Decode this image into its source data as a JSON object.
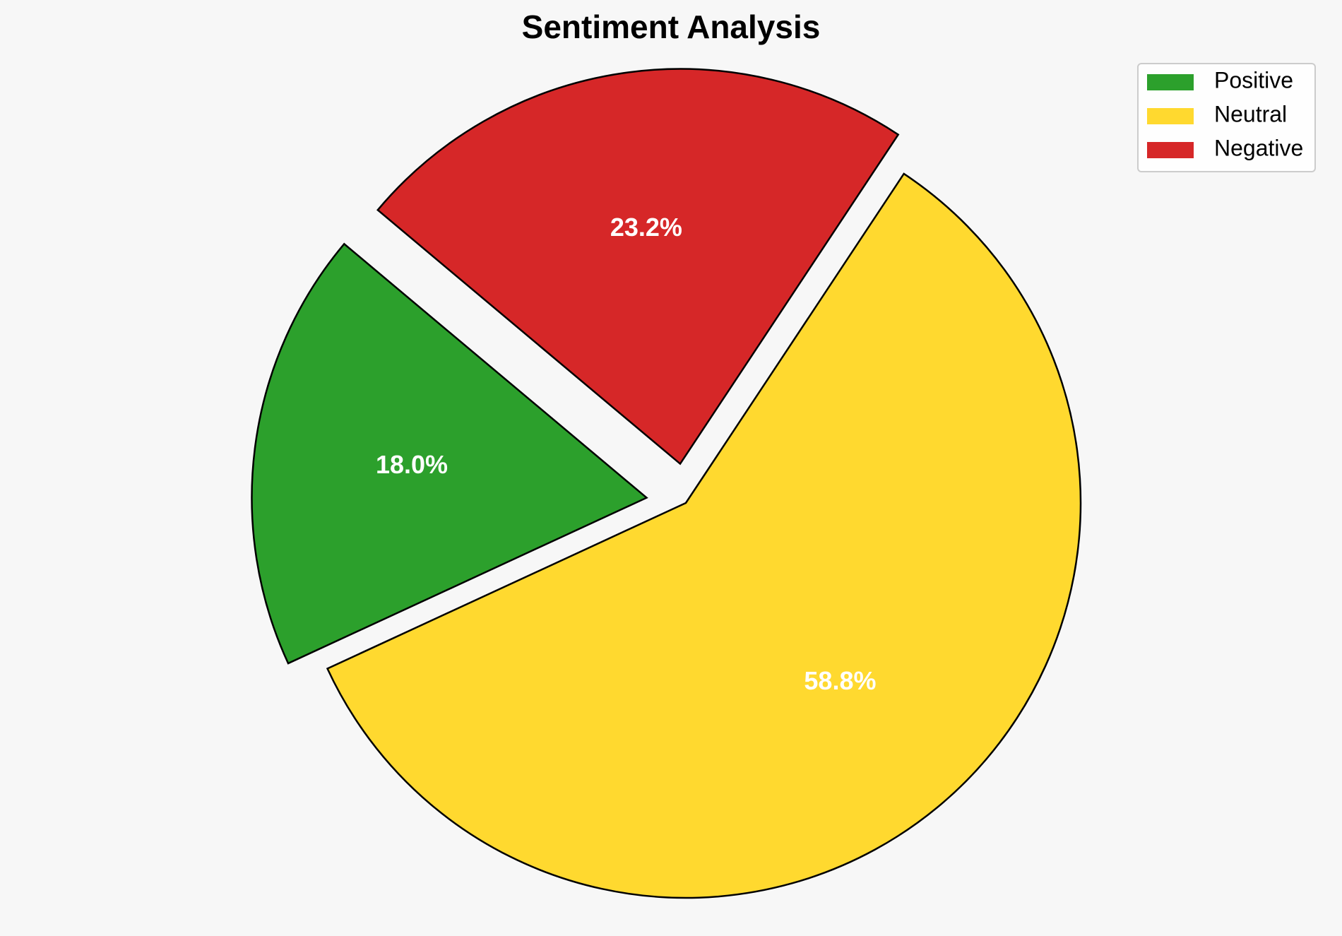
{
  "chart_data": {
    "type": "pie",
    "title": "Sentiment Analysis",
    "categories": [
      "Positive",
      "Neutral",
      "Negative"
    ],
    "values": [
      18.0,
      58.8,
      23.2
    ],
    "data_labels": [
      "18.0%",
      "58.8%",
      "23.2%"
    ],
    "colors": [
      "#2ca02c",
      "#ffd92f",
      "#d62728"
    ],
    "exploded": [
      true,
      false,
      true
    ],
    "legend": {
      "placement": "top-right",
      "entries": [
        "Positive",
        "Neutral",
        "Negative"
      ]
    },
    "start_angle_degrees": 140,
    "direction": "counterclockwise",
    "edge_color": "#000000",
    "label_color": "#ffffff"
  }
}
